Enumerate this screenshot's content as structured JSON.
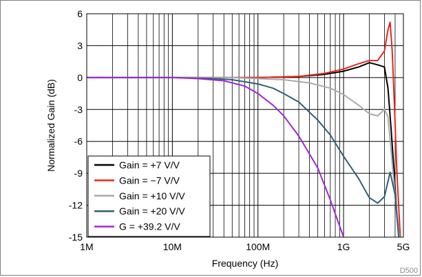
{
  "chart_data": {
    "type": "line",
    "title": "",
    "xlabel": "Frequency (Hz)",
    "ylabel": "Normalized Gain (dB)",
    "x_scale": "log",
    "xlim": [
      1000000,
      5000000000
    ],
    "ylim": [
      -15,
      6
    ],
    "grid": true,
    "legend_position": "bottom-left",
    "x_ticks": [
      {
        "value": 1000000,
        "label": "1M"
      },
      {
        "value": 10000000,
        "label": "10M"
      },
      {
        "value": 100000000,
        "label": "100M"
      },
      {
        "value": 1000000000,
        "label": "1G"
      },
      {
        "value": 5000000000,
        "label": "5G"
      }
    ],
    "y_ticks": [
      {
        "value": 6,
        "label": "6"
      },
      {
        "value": 3,
        "label": "3"
      },
      {
        "value": 0,
        "label": "0"
      },
      {
        "value": -3,
        "label": "-3"
      },
      {
        "value": -6,
        "label": "-6"
      },
      {
        "value": -9,
        "label": "-9"
      },
      {
        "value": -12,
        "label": "-12"
      },
      {
        "value": -15,
        "label": "-15"
      }
    ],
    "annotation": "D500",
    "series": [
      {
        "name": "Gain = +7 V/V",
        "color": "#000000",
        "x": [
          1000000,
          10000000,
          100000000,
          300000000,
          600000000,
          1000000000,
          1500000000,
          2000000000,
          2500000000,
          3000000000,
          3300000000,
          3600000000,
          3900000000,
          4200000000,
          4500000000
        ],
        "y": [
          0,
          0,
          0,
          0.1,
          0.3,
          0.6,
          1.0,
          1.4,
          1.2,
          1.0,
          -1,
          -5,
          -9,
          -13,
          -15
        ]
      },
      {
        "name": "Gain = −7 V/V",
        "color": "#e8251f",
        "x": [
          1000000,
          10000000,
          100000000,
          300000000,
          600000000,
          1000000000,
          1500000000,
          2000000000,
          2500000000,
          3000000000,
          3300000000,
          3500000000,
          3700000000,
          3900000000,
          4200000000,
          4600000000
        ],
        "y": [
          0,
          0,
          0,
          0.1,
          0.4,
          0.8,
          1.3,
          1.6,
          1.6,
          2.5,
          4.5,
          5.2,
          2.5,
          -2,
          -9,
          -15
        ]
      },
      {
        "name": "Gain = +10 V/V",
        "color": "#aaaaaa",
        "x": [
          1000000,
          10000000,
          50000000,
          100000000,
          200000000,
          400000000,
          700000000,
          1000000000,
          1500000000,
          2000000000,
          2500000000,
          3000000000,
          3300000000,
          3600000000,
          4000000000,
          4500000000
        ],
        "y": [
          0,
          0,
          0,
          -0.1,
          -0.2,
          -0.5,
          -1.0,
          -1.6,
          -2.6,
          -3.4,
          -3.6,
          -3.0,
          -3.7,
          -7,
          -11,
          -15
        ]
      },
      {
        "name": "Gain = +20 V/V",
        "color": "#2e5e74",
        "x": [
          1000000,
          10000000,
          30000000,
          50000000,
          100000000,
          150000000,
          200000000,
          300000000,
          500000000,
          700000000,
          1000000000,
          1500000000,
          2000000000,
          2500000000,
          3000000000,
          3500000000,
          4000000000,
          4400000000
        ],
        "y": [
          0,
          0,
          -0.1,
          -0.2,
          -0.6,
          -1.0,
          -1.5,
          -2.3,
          -4.0,
          -5.4,
          -7.4,
          -9.5,
          -11.3,
          -11.8,
          -11.2,
          -8.9,
          -11,
          -15
        ]
      },
      {
        "name": "G = +39.2 V/V",
        "color": "#9b28d6",
        "x": [
          1000000,
          10000000,
          20000000,
          40000000,
          70000000,
          100000000,
          150000000,
          200000000,
          300000000,
          500000000,
          700000000,
          1000000000
        ],
        "y": [
          0,
          0,
          -0.1,
          -0.3,
          -0.8,
          -1.5,
          -2.6,
          -3.6,
          -5.5,
          -8.5,
          -11.5,
          -15
        ]
      }
    ]
  }
}
